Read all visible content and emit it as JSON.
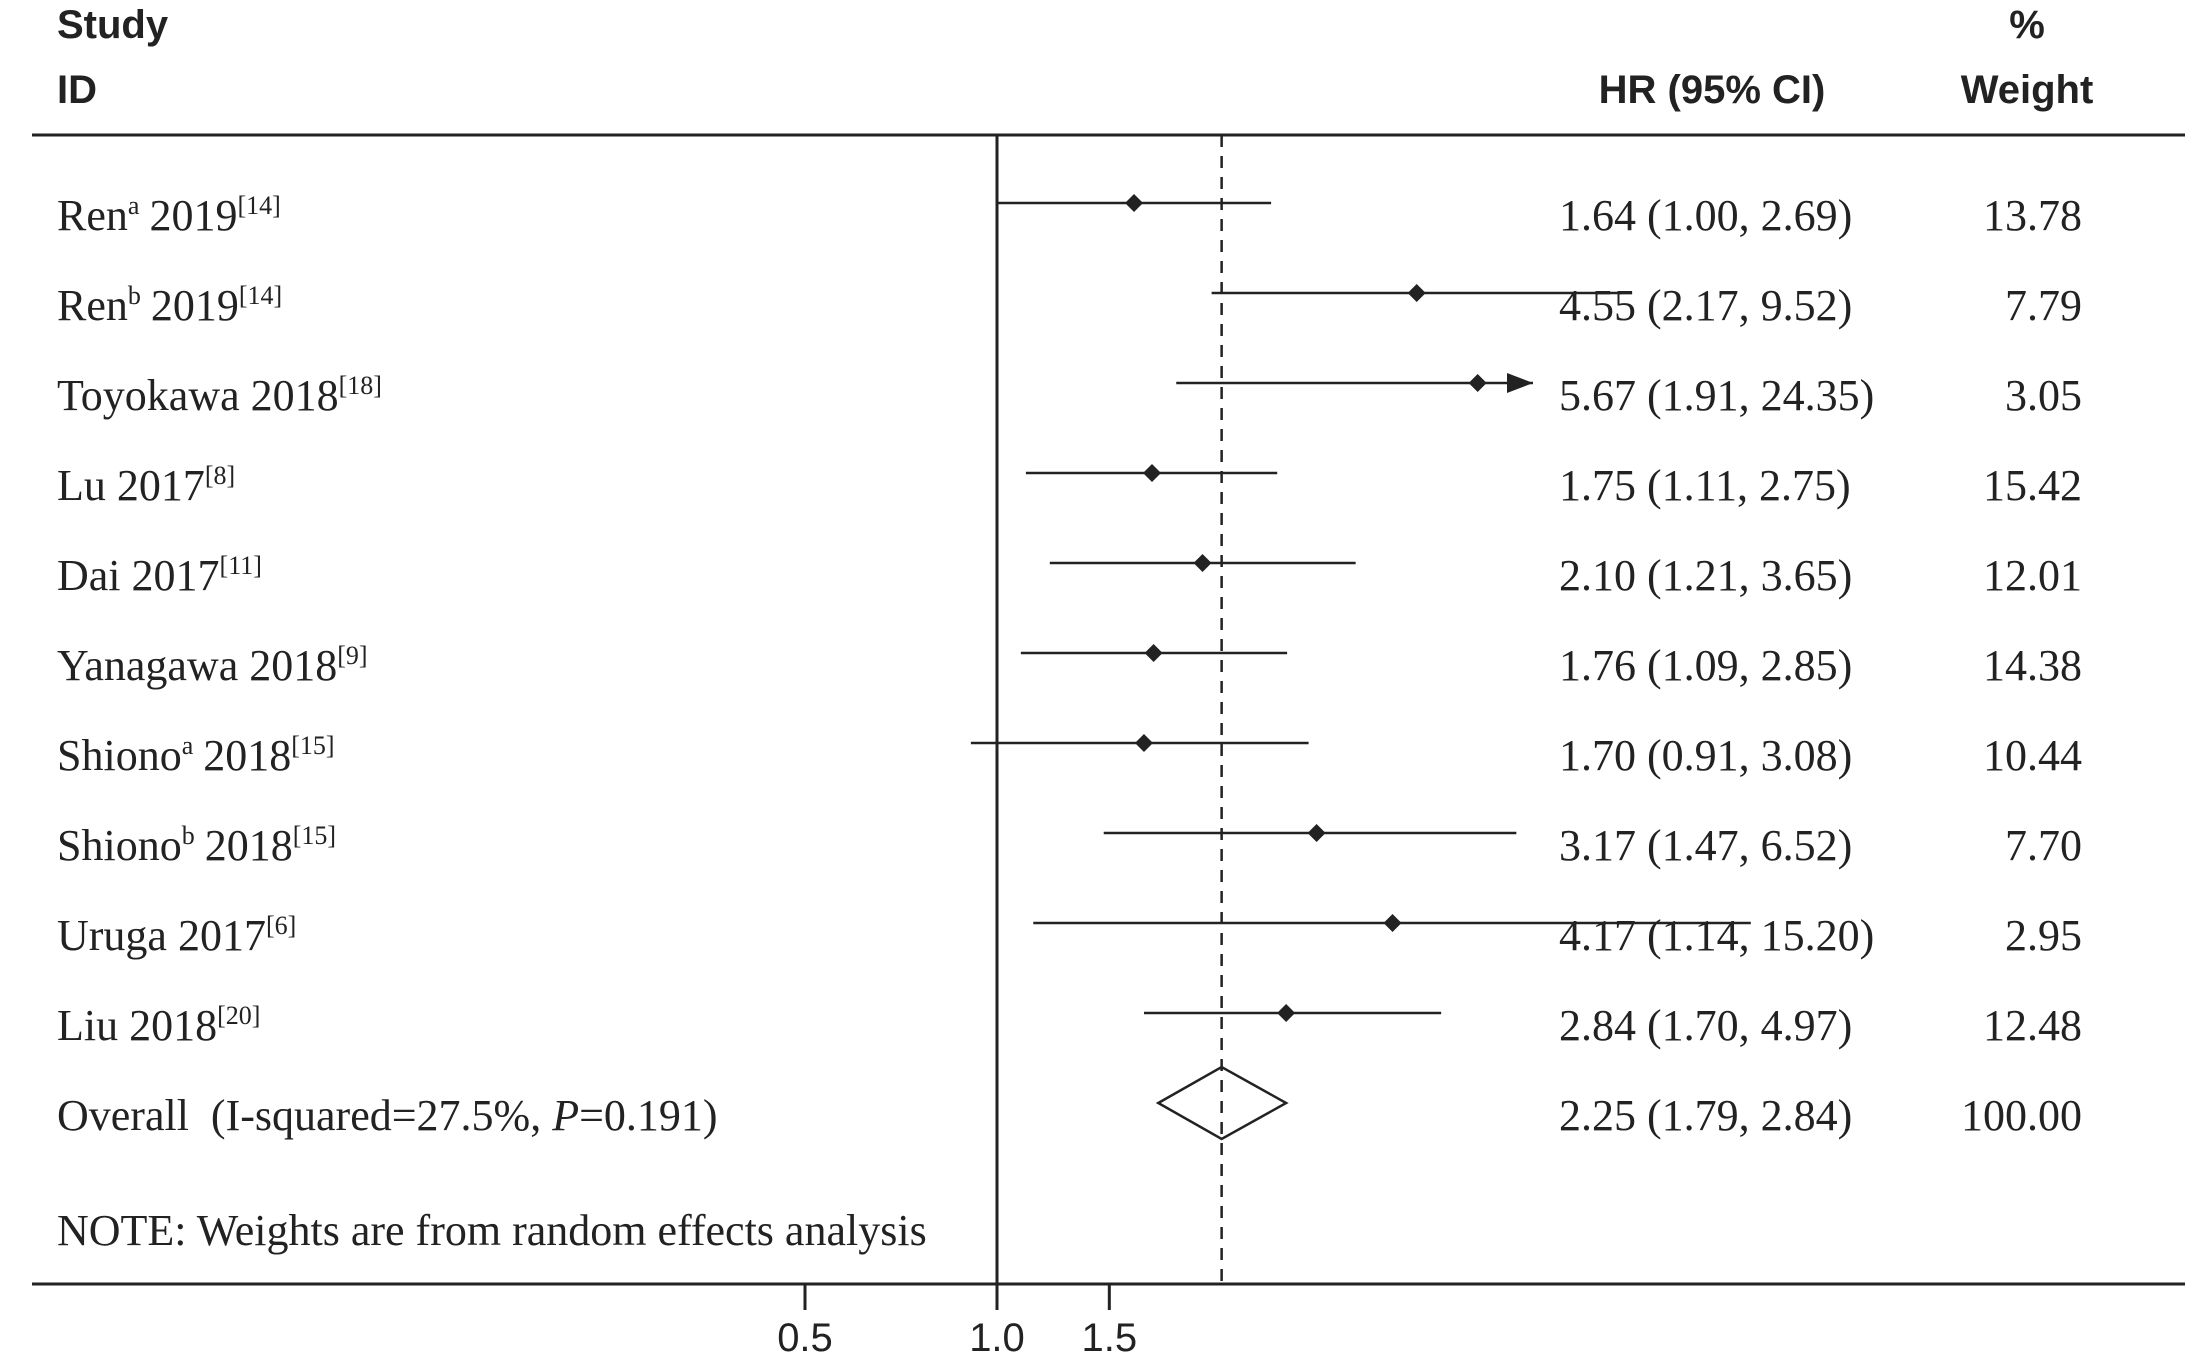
{
  "chart_data": {
    "type": "forest",
    "headers": {
      "study": [
        "Study",
        "ID"
      ],
      "estimate": "HR (95% CI)",
      "weight": [
        "%",
        "Weight"
      ]
    },
    "studies": [
      {
        "name": "Ren",
        "sup": "a",
        "year": "2019",
        "ref": "[14]",
        "hr": 1.64,
        "lo": 1.0,
        "hi": 2.69,
        "ci_text": "1.64 (1.00, 2.69)",
        "weight": "13.78"
      },
      {
        "name": "Ren",
        "sup": "b",
        "year": "2019",
        "ref": "[14]",
        "hr": 4.55,
        "lo": 2.17,
        "hi": 9.52,
        "ci_text": "4.55 (2.17, 9.52)",
        "weight": "7.79"
      },
      {
        "name": "Toyokawa",
        "sup": "",
        "year": "2018",
        "ref": "[18]",
        "hr": 5.67,
        "lo": 1.91,
        "hi": 24.35,
        "ci_text": "5.67 (1.91, 24.35)",
        "weight": "3.05",
        "arrow": true
      },
      {
        "name": "Lu",
        "sup": "",
        "year": "2017",
        "ref": "[8]",
        "hr": 1.75,
        "lo": 1.11,
        "hi": 2.75,
        "ci_text": "1.75 (1.11, 2.75)",
        "weight": "15.42"
      },
      {
        "name": "Dai",
        "sup": "",
        "year": "2017",
        "ref": "[11]",
        "hr": 2.1,
        "lo": 1.21,
        "hi": 3.65,
        "ci_text": "2.10 (1.21, 3.65)",
        "weight": "12.01"
      },
      {
        "name": "Yanagawa",
        "sup": "",
        "year": "2018",
        "ref": "[9]",
        "hr": 1.76,
        "lo": 1.09,
        "hi": 2.85,
        "ci_text": "1.76 (1.09, 2.85)",
        "weight": "14.38"
      },
      {
        "name": "Shiono",
        "sup": "a",
        "year": "2018",
        "ref": "[15]",
        "hr": 1.7,
        "lo": 0.91,
        "hi": 3.08,
        "ci_text": "1.70 (0.91, 3.08)",
        "weight": "10.44"
      },
      {
        "name": "Shiono",
        "sup": "b",
        "year": "2018",
        "ref": "[15]",
        "hr": 3.17,
        "lo": 1.47,
        "hi": 6.52,
        "ci_text": "3.17 (1.47, 6.52)",
        "weight": "7.70"
      },
      {
        "name": "Uruga",
        "sup": "",
        "year": "2017",
        "ref": "[6]",
        "hr": 4.17,
        "lo": 1.14,
        "hi": 15.2,
        "ci_text": "4.17 (1.14, 15.20)",
        "weight": "2.95"
      },
      {
        "name": "Liu",
        "sup": "",
        "year": "2018",
        "ref": "[20]",
        "hr": 2.84,
        "lo": 1.7,
        "hi": 4.97,
        "ci_text": "2.84 (1.70, 4.97)",
        "weight": "12.48"
      }
    ],
    "overall": {
      "label_prefix": "Overall  (I-squared=27.5%, ",
      "p_symbol": "P",
      "label_suffix": "=0.191)",
      "hr": 2.25,
      "lo": 1.79,
      "hi": 2.84,
      "ci_text": "2.25 (1.79, 2.84)",
      "weight": "100.00"
    },
    "note": "NOTE: Weights are from random effects analysis",
    "x_ticks": [
      {
        "value": 0.5,
        "label": "0.5"
      },
      {
        "value": 1.0,
        "label": "1.0"
      },
      {
        "value": 1.5,
        "label": "1.5"
      }
    ],
    "null_line": 1.0,
    "x_scale": "log"
  }
}
